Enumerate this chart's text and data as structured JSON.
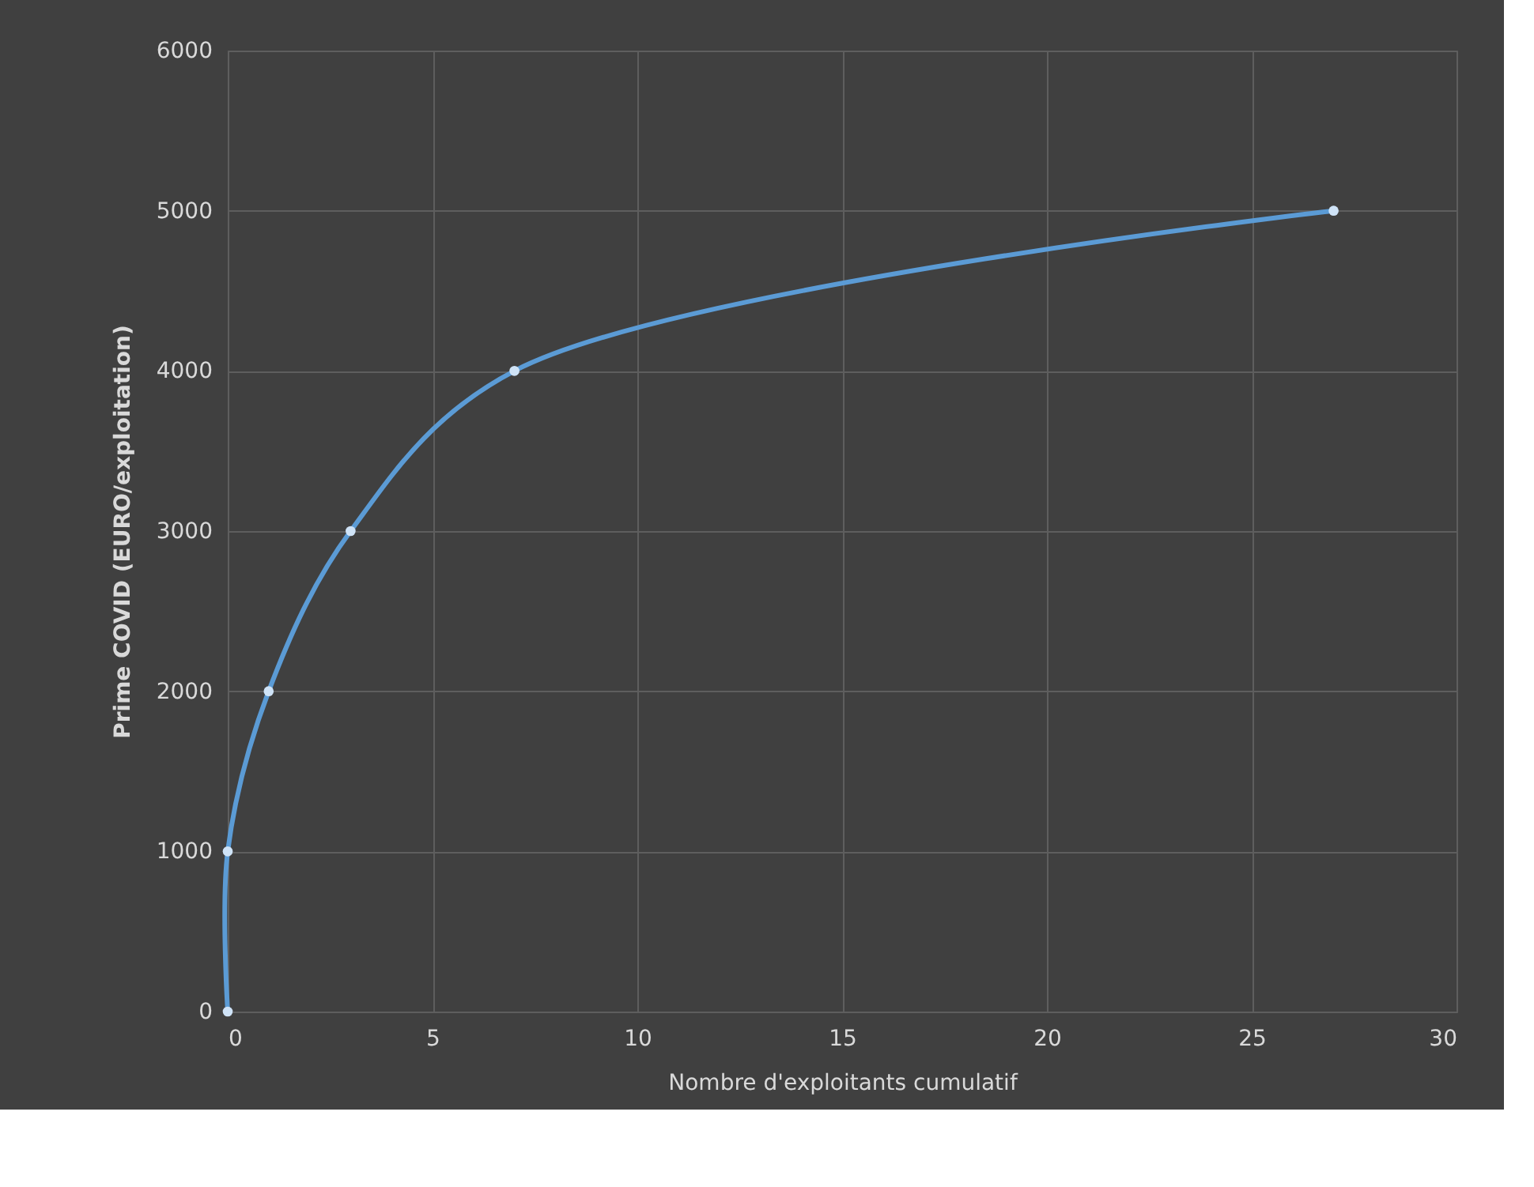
{
  "chart_data": {
    "type": "line",
    "xlabel": "Nombre d'exploitants cumulatif",
    "ylabel": "Prime COVID (EURO/exploitation)",
    "x": [
      0,
      0,
      1,
      3,
      7,
      27
    ],
    "series": [
      {
        "color": "#5b9bd5",
        "values": [
          0,
          1000,
          2000,
          3000,
          4000,
          5000
        ]
      }
    ],
    "xlim": [
      0,
      30
    ],
    "xticks": [
      0,
      5,
      10,
      15,
      20,
      25,
      30
    ],
    "ylim": [
      0,
      6000
    ],
    "yticks": [
      0,
      1000,
      2000,
      3000,
      4000,
      5000,
      6000
    ],
    "grid": true,
    "marker": "circle",
    "line_style": "solid"
  }
}
